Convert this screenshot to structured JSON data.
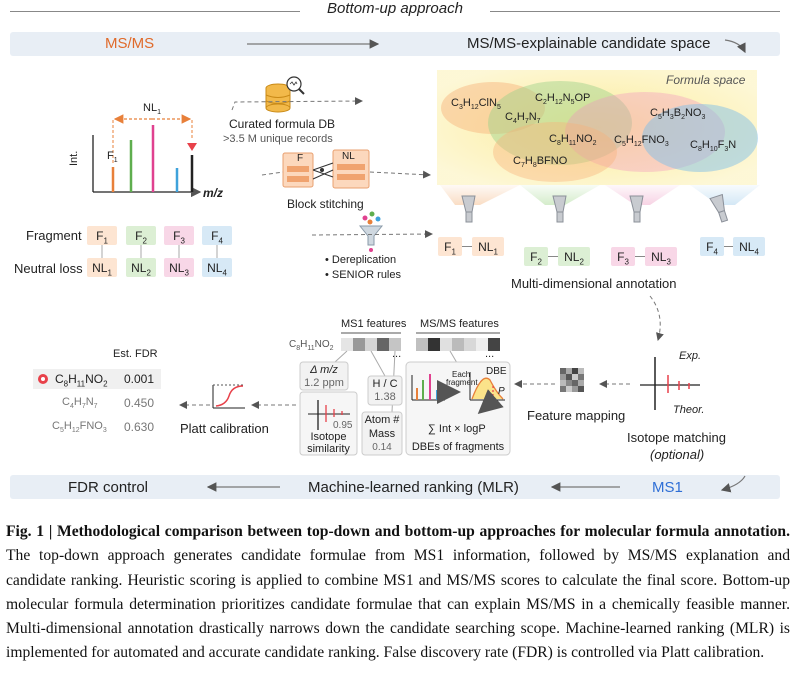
{
  "title": "Bottom-up approach",
  "flow": {
    "top_left": "MS/MS",
    "top_right": "MS/MS-explainable candidate space",
    "bottom_left": "FDR control",
    "bottom_mid": "Machine-learned ranking (MLR)",
    "bottom_right": "MS1"
  },
  "spectrum": {
    "nl_label": "NL",
    "nl_sub": "1",
    "f_label": "F",
    "f_sub": "1",
    "y_label": "Int.",
    "x_label": "m/z"
  },
  "fragments": {
    "fragment_label": "Fragment",
    "nl_row_label": "Neutral loss",
    "f_items": [
      {
        "text": "F",
        "sub": "1"
      },
      {
        "text": "F",
        "sub": "2"
      },
      {
        "text": "F",
        "sub": "3"
      },
      {
        "text": "F",
        "sub": "4"
      }
    ],
    "nl_items": [
      {
        "text": "NL",
        "sub": "1"
      },
      {
        "text": "NL",
        "sub": "2"
      },
      {
        "text": "NL",
        "sub": "3"
      },
      {
        "text": "NL",
        "sub": "4"
      }
    ]
  },
  "middle": {
    "db_label": "Curated formula DB",
    "db_sub": ">3.5 M unique records",
    "block_f": "F",
    "block_nl": "NL",
    "block_label": "Block stitching",
    "bullet1": "Dereplication",
    "bullet2": "SENIOR rules"
  },
  "formula_space": {
    "label": "Formula space",
    "formulas": [
      [
        "C",
        "3",
        "H",
        "12",
        "ClN",
        "5",
        "",
        ""
      ],
      [
        "C",
        "2",
        "H",
        "12",
        "N",
        "5",
        "OP",
        ""
      ],
      [
        "C",
        "4",
        "H",
        "7",
        "N",
        "7",
        "",
        ""
      ],
      [
        "C",
        "5",
        "H",
        "3",
        "B",
        "2",
        "NO",
        "3"
      ],
      [
        "C",
        "8",
        "H",
        "11",
        "NO",
        "2",
        "",
        ""
      ],
      [
        "C",
        "5",
        "H",
        "12",
        "FNO",
        "3",
        "",
        ""
      ],
      [
        "C",
        "8",
        "H",
        "10",
        "F",
        "3",
        "N",
        ""
      ],
      [
        "C",
        "7",
        "H",
        "8",
        "BFNO",
        "",
        "",
        ""
      ]
    ]
  },
  "annotation": {
    "label": "Multi-dimensional annotation",
    "pairs": [
      {
        "f": "F",
        "fs": "1",
        "nl": "NL",
        "nls": "1"
      },
      {
        "f": "F",
        "fs": "2",
        "nl": "NL",
        "nls": "2"
      },
      {
        "f": "F",
        "fs": "3",
        "nl": "NL",
        "nls": "3"
      },
      {
        "f": "F",
        "fs": "4",
        "nl": "NL",
        "nls": "4"
      }
    ]
  },
  "ranking": {
    "est_fdr": "Est. FDR",
    "rows": [
      {
        "c": "C",
        "cs": "8",
        "h": "H",
        "hs": "11",
        "rest": "NO",
        "rs": "2",
        "fdr": "0.001",
        "top": true
      },
      {
        "c": "C",
        "cs": "4",
        "h": "H",
        "hs": "7",
        "rest": "N",
        "rs": "7",
        "fdr": "0.450",
        "top": false
      },
      {
        "c": "C",
        "cs": "5",
        "h": "H",
        "hs": "12",
        "rest": "FNO",
        "rs": "3",
        "fdr": "0.630",
        "top": false
      }
    ],
    "platt": "Platt calibration"
  },
  "features": {
    "ms1_header": "MS1 features",
    "msms_header": "MS/MS features",
    "row_c": "C",
    "row_cs": "8",
    "row_h": "H",
    "row_hs": "11",
    "row_rest": "NO",
    "row_rs": "2",
    "ellipsis": "...",
    "delta_mz": "Δ m/z",
    "delta_val": "1.2 ppm",
    "hc": "H / C",
    "hc_val": "1.38",
    "iso_val": "0.95",
    "iso_label1": "Isotope",
    "iso_label2": "similarity",
    "atom1": "Atom #",
    "atom2": "Mass",
    "atom_val": "0.14",
    "each_fragment1": "Each",
    "each_fragment2": "fragment",
    "dbe": "DBE",
    "p_label": "P",
    "sum_formula": "∑ Int × logP",
    "dbe_frag": "DBEs of fragments",
    "mapping": "Feature mapping",
    "exp": "Exp.",
    "theor": "Theor.",
    "isotope_matching": "Isotope matching",
    "optional": "(optional)"
  },
  "caption": {
    "bold_intro": "Fig. 1 | Methodological comparison between top-down and bottom-up approaches for molecular formula annotation.",
    "body": "The top-down approach generates candidate formulae from MS1 information, followed by MS/MS explanation and candidate ranking. Heuristic scoring is applied to combine MS1 and MS/MS scores to calculate the final score. Bottom-up molecular formula determination prioritizes candidate formulae that can explain MS/MS in a chemically feasible manner. Multi-dimensional annotation drastically narrows down the candidate searching scope. Machine-learned ranking (MLR) is implemented for automated and accurate candidate ranking. False discovery rate (FDR) is controlled via Platt calibration."
  },
  "colors": {
    "orange": "#e8803a",
    "green": "#5fae4e",
    "pink": "#e0418f",
    "blue": "#3fa2db",
    "red": "#e8414a",
    "band": "#e8eef5",
    "ms_orange": "#e06a2a",
    "ms1_blue": "#2f6fd6"
  }
}
